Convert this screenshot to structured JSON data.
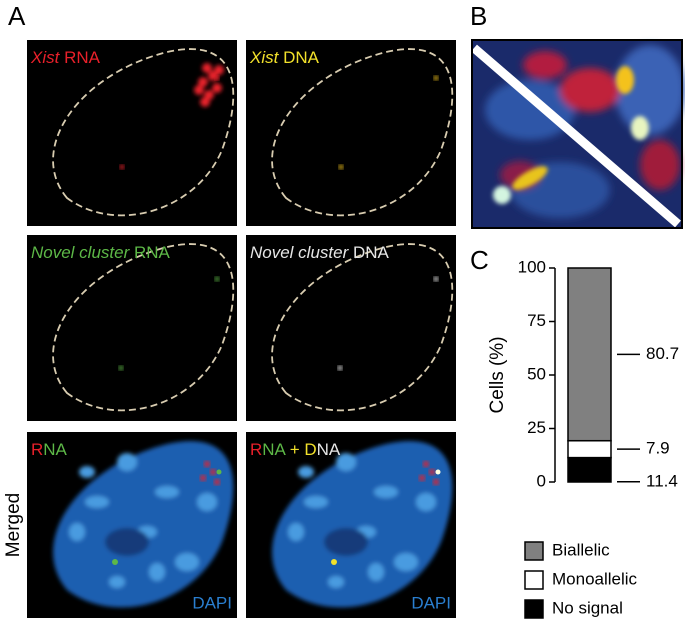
{
  "panel_labels": [
    "A",
    "B",
    "C"
  ],
  "image_labels": [
    [
      {
        "text": "Xist",
        "color": "#e8202a",
        "italic": true
      },
      {
        "text": " RNA",
        "color": "#e8202a",
        "italic": false
      }
    ],
    [
      {
        "text": "Xist",
        "color": "#f2e12b",
        "italic": true
      },
      {
        "text": " DNA",
        "color": "#f2e12b",
        "italic": false
      }
    ],
    [
      {
        "text": "Novel cluster",
        "color": "#5db847",
        "italic": true
      },
      {
        "text": " RNA",
        "color": "#5db847",
        "italic": false
      }
    ],
    [
      {
        "text": "Novel cluster",
        "color": "#e6e6e6",
        "italic": true
      },
      {
        "text": " DNA",
        "color": "#e6e6e6",
        "italic": false
      }
    ],
    [
      {
        "text": "R",
        "color": "#e8202a",
        "italic": false
      },
      {
        "text": "NA",
        "color": "#5db847",
        "italic": false
      }
    ],
    [
      {
        "text": "R",
        "color": "#e8202a",
        "italic": false
      },
      {
        "text": "NA",
        "color": "#5db847",
        "italic": false
      },
      {
        "text": " + D",
        "color": "#f2e12b",
        "italic": false
      },
      {
        "text": "NA",
        "color": "#e6e6e6",
        "italic": false
      }
    ]
  ],
  "row_label": "Merged",
  "dapi_label": "DAPI",
  "chart_data": {
    "type": "stacked_bar",
    "y_label": "Cells (%)",
    "categories": [
      null
    ],
    "series": [
      {
        "name": "No signal",
        "color": "#000000",
        "values": [
          11.4
        ]
      },
      {
        "name": "Monoallelic",
        "color": "#ffffff",
        "values": [
          7.9
        ]
      },
      {
        "name": "Biallelic",
        "color": "#808080",
        "values": [
          80.7
        ]
      }
    ],
    "ylim": [
      0,
      100
    ],
    "yticks": [
      0,
      25,
      50,
      75,
      100
    ]
  }
}
